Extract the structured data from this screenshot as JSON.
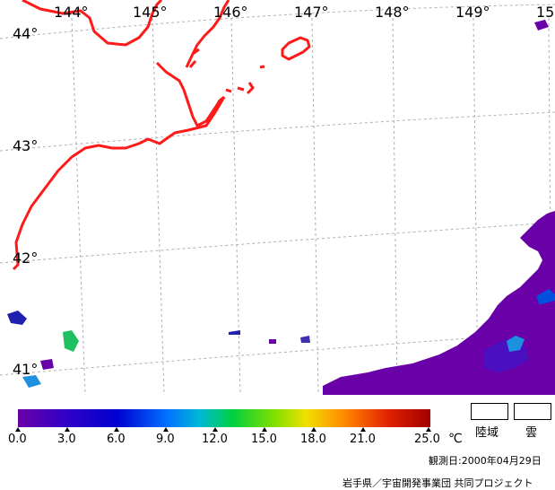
{
  "map": {
    "longitude_labels": [
      "144°",
      "145°",
      "146°",
      "147°",
      "148°",
      "149°",
      "15"
    ],
    "latitude_labels": [
      "44°",
      "43°",
      "42°",
      "41°"
    ],
    "coastline_color": "#ff1a1a",
    "grid_color": "#b0b0b0"
  },
  "legend": {
    "scale_ticks": [
      "0.0",
      "3.0",
      "6.0",
      "9.0",
      "12.0",
      "15.0",
      "18.0",
      "21.0",
      "25.0"
    ],
    "unit": "℃",
    "scale_min": 0,
    "scale_max": 25,
    "land_label": "陸域",
    "cloud_label": "雲",
    "colors": [
      "#6a00a8",
      "#3000c8",
      "#0000d0",
      "#0060ff",
      "#00b0e0",
      "#00d040",
      "#80e000",
      "#f0e000",
      "#ff8000",
      "#e02000",
      "#a00000"
    ]
  },
  "footer": {
    "observation_date": "観測日:2000年04月29日",
    "credit": "岩手県／宇宙開発事業団 共同プロジェクト"
  }
}
